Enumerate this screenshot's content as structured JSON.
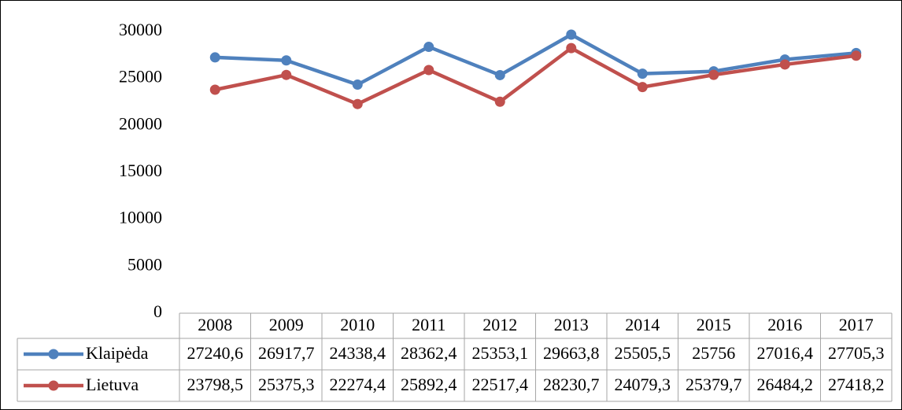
{
  "chart_data": {
    "type": "line",
    "categories": [
      "2008",
      "2009",
      "2010",
      "2011",
      "2012",
      "2013",
      "2014",
      "2015",
      "2016",
      "2017"
    ],
    "series": [
      {
        "name": "Klaipėda",
        "color": "#4f81bd",
        "values": [
          27240.6,
          26917.7,
          24338.4,
          28362.4,
          25353.1,
          29663.8,
          25505.5,
          25756,
          27016.4,
          27705.3
        ],
        "value_labels": [
          "27240,6",
          "26917,7",
          "24338,4",
          "28362,4",
          "25353,1",
          "29663,8",
          "25505,5",
          "25756",
          "27016,4",
          "27705,3"
        ]
      },
      {
        "name": "Lietuva",
        "color": "#c0504d",
        "values": [
          23798.5,
          25375.3,
          22274.4,
          25892.4,
          22517.4,
          28230.7,
          24079.3,
          25379.7,
          26484.2,
          27418.2
        ],
        "value_labels": [
          "23798,5",
          "25375,3",
          "22274,4",
          "25892,4",
          "22517,4",
          "28230,7",
          "24079,3",
          "25379,7",
          "26484,2",
          "27418,2"
        ]
      }
    ],
    "ylim": [
      0,
      30000
    ],
    "yticks": [
      0,
      5000,
      10000,
      15000,
      20000,
      25000,
      30000
    ],
    "grid": false
  }
}
